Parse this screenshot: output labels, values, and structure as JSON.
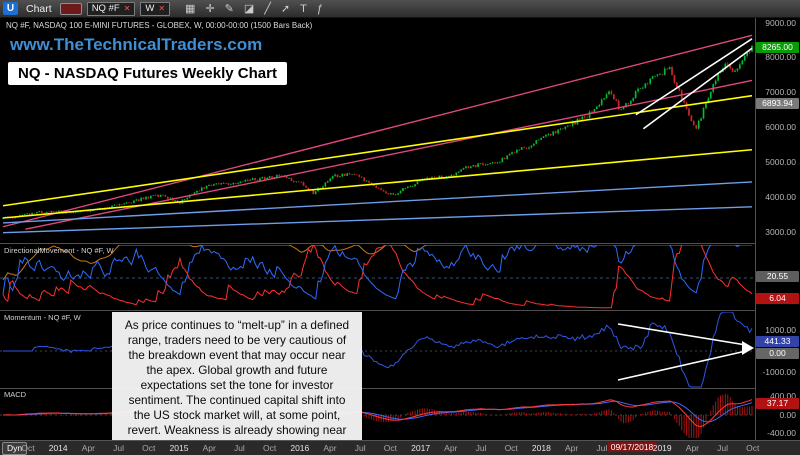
{
  "toolbar": {
    "logo": "U",
    "menu_label": "Chart",
    "symbol": "NQ #F",
    "interval": "W",
    "close_glyph": "✕",
    "icons": [
      {
        "name": "panels-icon",
        "glyph": "▦"
      },
      {
        "name": "crosshair-icon",
        "glyph": "✛"
      },
      {
        "name": "pencil-icon",
        "glyph": "✎"
      },
      {
        "name": "eraser-icon",
        "glyph": "◪"
      },
      {
        "name": "trendline-icon",
        "glyph": "╱"
      },
      {
        "name": "arrow-icon",
        "glyph": "➚"
      },
      {
        "name": "text-tool-icon",
        "glyph": "T"
      },
      {
        "name": "function-icon",
        "glyph": "ƒ"
      }
    ]
  },
  "header": {
    "title_line": "NQ #F, NASDAQ 100 E-MINI FUTURES - GLOBEX, W, 00:00-00:00 (1500 Bars Back)",
    "watermark": "www.TheTechnicalTraders.com",
    "headline": "NQ - NASDAQ Futures Weekly Chart"
  },
  "price_scale": {
    "labels": [
      "9000.00",
      "8000.00",
      "7000.00",
      "6000.00",
      "5000.00",
      "4000.00",
      "3000.00"
    ],
    "current_price": {
      "text": "8265.00",
      "color": "#079b07"
    },
    "level_badge": {
      "text": "6893.94",
      "color": "#7a7a7a"
    }
  },
  "panels": {
    "dm": {
      "label": "DirectionalMovement - NQ #F, W",
      "badges": [
        {
          "text": "20.55",
          "color": "#5e5e5e"
        },
        {
          "text": "6.04",
          "color": "#b31212"
        }
      ]
    },
    "momentum": {
      "label": "Momentum - NQ #F, W",
      "scale_top": "1000.00",
      "scale_bottom": "-1000.00",
      "badge_value": {
        "text": "441.33",
        "color": "#3243a8"
      },
      "badge_zero": {
        "text": "0.00",
        "color": "#666666"
      }
    },
    "macd": {
      "label": "MACD",
      "scale": [
        "400.00",
        "0.00",
        "-400.00"
      ],
      "badge": {
        "text": "37.17",
        "color": "#b31212"
      }
    }
  },
  "annotation": {
    "text": "As price continues to “melt-up” in a defined range, traders need to be very cautious of the breakdown event that may occur near the apex.  Global growth and future expectations set the tone for investor sentiment.  The continued capital shift into the US stock market will, at some point, revert.  Weakness is already showing near these range highs."
  },
  "time_axis": {
    "dyn_label": "Dyn",
    "labels": [
      {
        "label": "Oct"
      },
      {
        "label": "2014",
        "year": true
      },
      {
        "label": "Apr"
      },
      {
        "label": "Jul"
      },
      {
        "label": "Oct"
      },
      {
        "label": "2015",
        "year": true
      },
      {
        "label": "Apr"
      },
      {
        "label": "Jul"
      },
      {
        "label": "Oct"
      },
      {
        "label": "2016",
        "year": true
      },
      {
        "label": "Apr"
      },
      {
        "label": "Jul"
      },
      {
        "label": "Oct"
      },
      {
        "label": "2017",
        "year": true
      },
      {
        "label": "Apr"
      },
      {
        "label": "Jul"
      },
      {
        "label": "Oct"
      },
      {
        "label": "2018",
        "year": true
      },
      {
        "label": "Apr"
      },
      {
        "label": "Jul"
      },
      {
        "label": "09/17/2018",
        "highlight": true
      },
      {
        "label": "2019",
        "year": true
      },
      {
        "label": "Apr"
      },
      {
        "label": "Jul"
      },
      {
        "label": "Oct"
      }
    ]
  },
  "chart_data": {
    "type": "candlestick",
    "symbol": "NQ #F",
    "interval": "W",
    "title": "NQ - NASDAQ Futures Weekly Chart",
    "visible_range": {
      "start": "Oct 2013",
      "end": "Oct 2019"
    },
    "price_axis": {
      "min": 3000,
      "max": 9000,
      "tick": 1000
    },
    "last_price": 8265.0,
    "bars": 310,
    "price_anchors": [
      [
        0,
        3380
      ],
      [
        0.05,
        3560
      ],
      [
        0.1,
        3580
      ],
      [
        0.14,
        3700
      ],
      [
        0.18,
        3920
      ],
      [
        0.21,
        4050
      ],
      [
        0.235,
        3830
      ],
      [
        0.27,
        4300
      ],
      [
        0.32,
        4450
      ],
      [
        0.37,
        4600
      ],
      [
        0.4,
        4380
      ],
      [
        0.415,
        4100
      ],
      [
        0.44,
        4600
      ],
      [
        0.47,
        4650
      ],
      [
        0.5,
        4250
      ],
      [
        0.52,
        4050
      ],
      [
        0.56,
        4500
      ],
      [
        0.6,
        4600
      ],
      [
        0.62,
        4850
      ],
      [
        0.66,
        5000
      ],
      [
        0.7,
        5450
      ],
      [
        0.74,
        5900
      ],
      [
        0.78,
        6300
      ],
      [
        0.81,
        7000
      ],
      [
        0.825,
        6450
      ],
      [
        0.85,
        7100
      ],
      [
        0.875,
        7500
      ],
      [
        0.89,
        7650
      ],
      [
        0.91,
        6600
      ],
      [
        0.925,
        5900
      ],
      [
        0.95,
        7300
      ],
      [
        0.965,
        7800
      ],
      [
        0.975,
        7500
      ],
      [
        1,
        8300
      ]
    ],
    "trendlines": [
      {
        "name": "pink-channel-upper",
        "color": "#e0487e",
        "width": 1.4,
        "from": [
          0,
          3150
        ],
        "to": [
          1,
          8620
        ]
      },
      {
        "name": "pink-channel-lower",
        "color": "#e0487e",
        "width": 1.4,
        "from": [
          0.03,
          3080
        ],
        "to": [
          1,
          7330
        ]
      },
      {
        "name": "yellow-support-upper",
        "color": "#ffff00",
        "width": 1.6,
        "from": [
          0,
          3750
        ],
        "to": [
          1,
          6894
        ]
      },
      {
        "name": "yellow-support-lower",
        "color": "#ffff00",
        "width": 1.6,
        "from": [
          0,
          3400
        ],
        "to": [
          1,
          5350
        ]
      },
      {
        "name": "blue-support-upper",
        "color": "#6d9eeb",
        "width": 1.4,
        "from": [
          0,
          3260
        ],
        "to": [
          1,
          4430
        ]
      },
      {
        "name": "blue-support-lower",
        "color": "#6d9eeb",
        "width": 1.4,
        "from": [
          0,
          2980
        ],
        "to": [
          1,
          3720
        ]
      },
      {
        "name": "white-wedge-upper",
        "color": "#ffffff",
        "width": 1.6,
        "from": [
          0.845,
          6350
        ],
        "to": [
          1,
          8520
        ]
      },
      {
        "name": "white-wedge-lower",
        "color": "#ffffff",
        "width": 1.6,
        "from": [
          0.855,
          5950
        ],
        "to": [
          1,
          8250
        ]
      }
    ],
    "momentum_wedge": {
      "lines": [
        [
          [
            618,
            306
          ],
          [
            746,
            327
          ]
        ],
        [
          [
            618,
            362
          ],
          [
            746,
            333
          ]
        ]
      ],
      "arrow": [
        [
          742,
          323
        ],
        [
          754,
          330
        ],
        [
          742,
          337
        ]
      ]
    },
    "colors": {
      "up": "#00bd2e",
      "down": "#cf2525",
      "di_plus": "#2f6bff",
      "di_minus": "#ff2f2f",
      "adx": "#c87818",
      "momentum": "#2f55e8",
      "macd_line": "#ff3b3b",
      "macd_signal": "#3f66ff",
      "histogram": "#a81414"
    },
    "indicators": [
      {
        "name": "DirectionalMovement",
        "applied_to": "NQ #F, W",
        "last_values": [
          20.55,
          6.04
        ]
      },
      {
        "name": "Momentum",
        "last_value": 441.33,
        "scale": [
          1000,
          -1000
        ]
      },
      {
        "name": "MACD",
        "last_value": 37.17,
        "scale": [
          400,
          -400
        ]
      }
    ]
  }
}
